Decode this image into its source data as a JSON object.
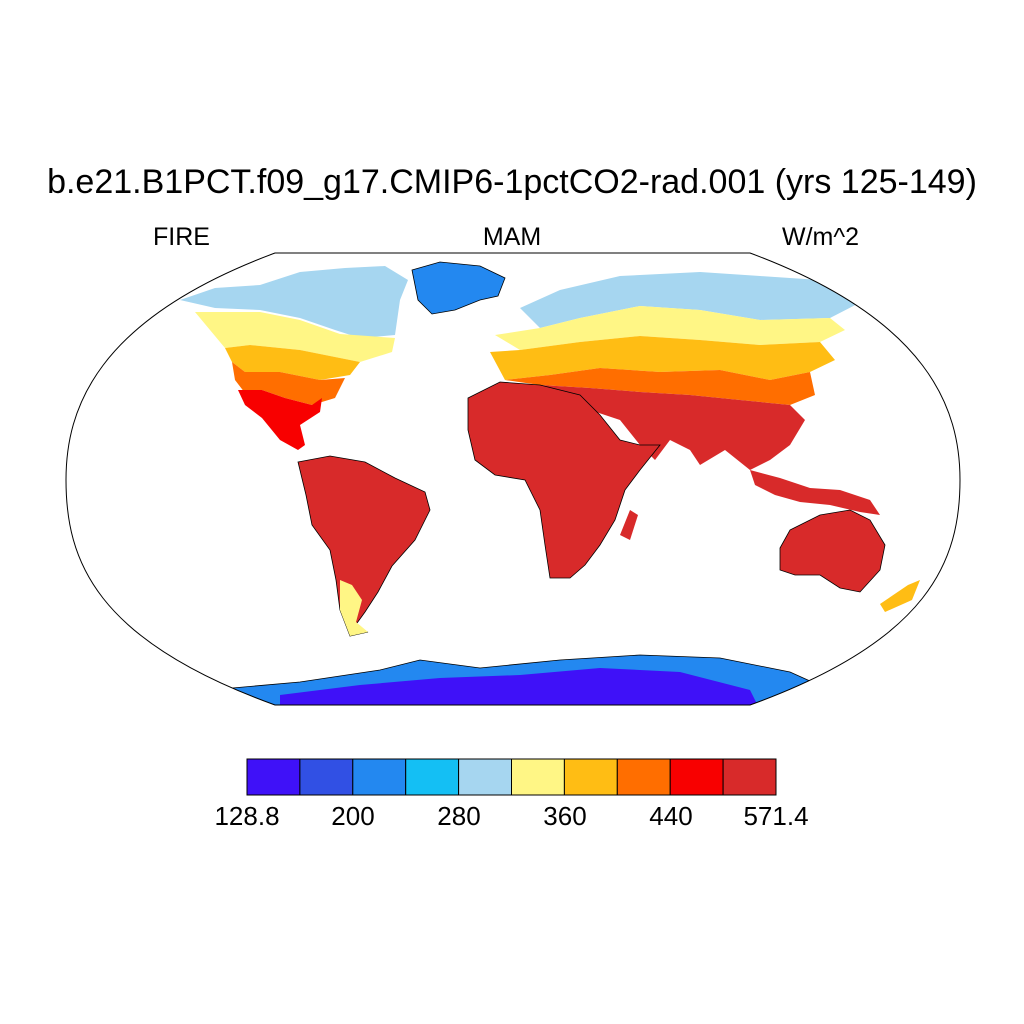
{
  "title": "b.e21.B1PCT.f09_g17.CMIP6-1pctCO2-rad.001 (yrs 125-149)",
  "left_label": "FIRE",
  "center_label": "MAM",
  "right_label": "W/m^2",
  "colorbar": {
    "colors": [
      "#3f11f8",
      "#3150e4",
      "#2388f0",
      "#14bff4",
      "#a6d6f0",
      "#fff685",
      "#ffbd14",
      "#ff6e00",
      "#f80000",
      "#d82a2a"
    ],
    "tick_labels": [
      "128.8",
      "200",
      "280",
      "360",
      "440",
      "571.4"
    ]
  },
  "regions": [
    {
      "name": "greenland",
      "color": "#2388f0"
    },
    {
      "name": "canada-north",
      "color": "#a6d6f0"
    },
    {
      "name": "canada-mid",
      "color": "#fff685"
    },
    {
      "name": "usa-north",
      "color": "#ffbd14"
    },
    {
      "name": "usa-south",
      "color": "#ff6e00"
    },
    {
      "name": "mexico",
      "color": "#f80000"
    },
    {
      "name": "south-america",
      "color": "#d82a2a"
    },
    {
      "name": "africa",
      "color": "#d82a2a"
    },
    {
      "name": "europe",
      "color": "#ffbd14"
    },
    {
      "name": "siberia",
      "color": "#a6d6f0"
    },
    {
      "name": "asia-south",
      "color": "#d82a2a"
    },
    {
      "name": "australia",
      "color": "#d82a2a"
    },
    {
      "name": "antarctica",
      "color": "#3f11f8"
    }
  ]
}
